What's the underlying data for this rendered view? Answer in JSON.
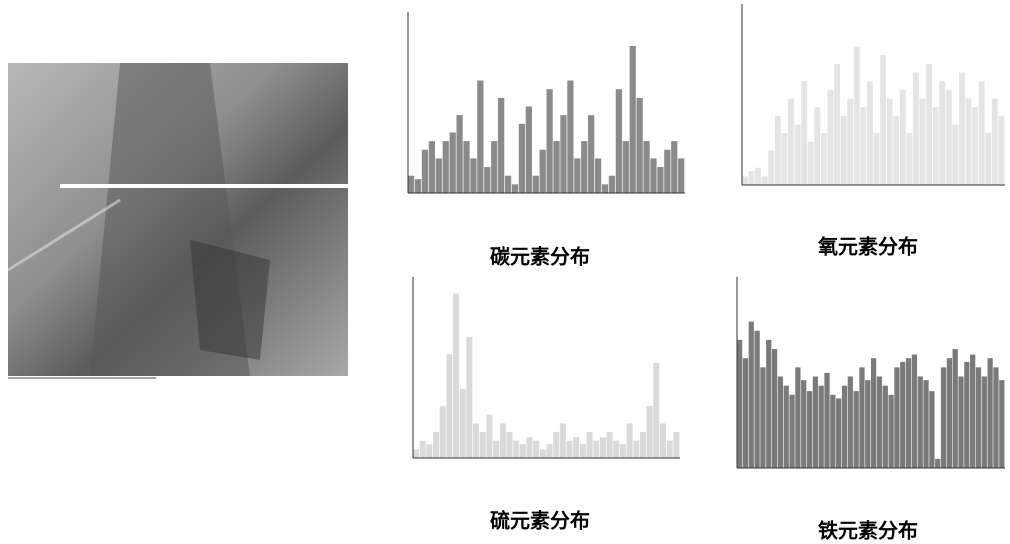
{
  "figure": {
    "ylim": [
      0,
      100
    ],
    "panels": [
      {
        "caption": "碳元素分布",
        "color": "#8a8a8a",
        "values": [
          10,
          8,
          25,
          30,
          20,
          30,
          35,
          45,
          30,
          20,
          65,
          15,
          30,
          55,
          10,
          5,
          40,
          50,
          10,
          25,
          60,
          30,
          45,
          65,
          20,
          30,
          45,
          20,
          5,
          10,
          60,
          30,
          85,
          55,
          30,
          20,
          15,
          25,
          30,
          20
        ]
      },
      {
        "caption": "氧元素分布",
        "color": "#e4e4e4",
        "values": [
          5,
          8,
          10,
          5,
          20,
          40,
          30,
          50,
          35,
          60,
          25,
          45,
          30,
          55,
          70,
          40,
          50,
          80,
          45,
          60,
          30,
          75,
          50,
          40,
          55,
          30,
          65,
          50,
          70,
          45,
          60,
          55,
          35,
          65,
          50,
          45,
          60,
          30,
          50,
          40
        ]
      },
      {
        "caption": "硫元素分布",
        "color": "#dadada",
        "values": [
          5,
          10,
          8,
          15,
          30,
          60,
          95,
          40,
          70,
          20,
          15,
          25,
          10,
          20,
          15,
          10,
          8,
          12,
          10,
          5,
          8,
          15,
          20,
          10,
          12,
          8,
          15,
          10,
          12,
          15,
          10,
          8,
          20,
          10,
          15,
          30,
          55,
          20,
          10,
          15
        ]
      },
      {
        "caption": "铁元素分布",
        "color": "#7a7a7a",
        "values": [
          70,
          60,
          80,
          75,
          55,
          70,
          65,
          50,
          45,
          40,
          55,
          48,
          42,
          50,
          45,
          52,
          40,
          38,
          45,
          50,
          42,
          55,
          48,
          60,
          50,
          45,
          40,
          55,
          58,
          60,
          62,
          50,
          48,
          42,
          5,
          55,
          60,
          65,
          50,
          58,
          62,
          55,
          50,
          60,
          55,
          48
        ]
      }
    ]
  }
}
